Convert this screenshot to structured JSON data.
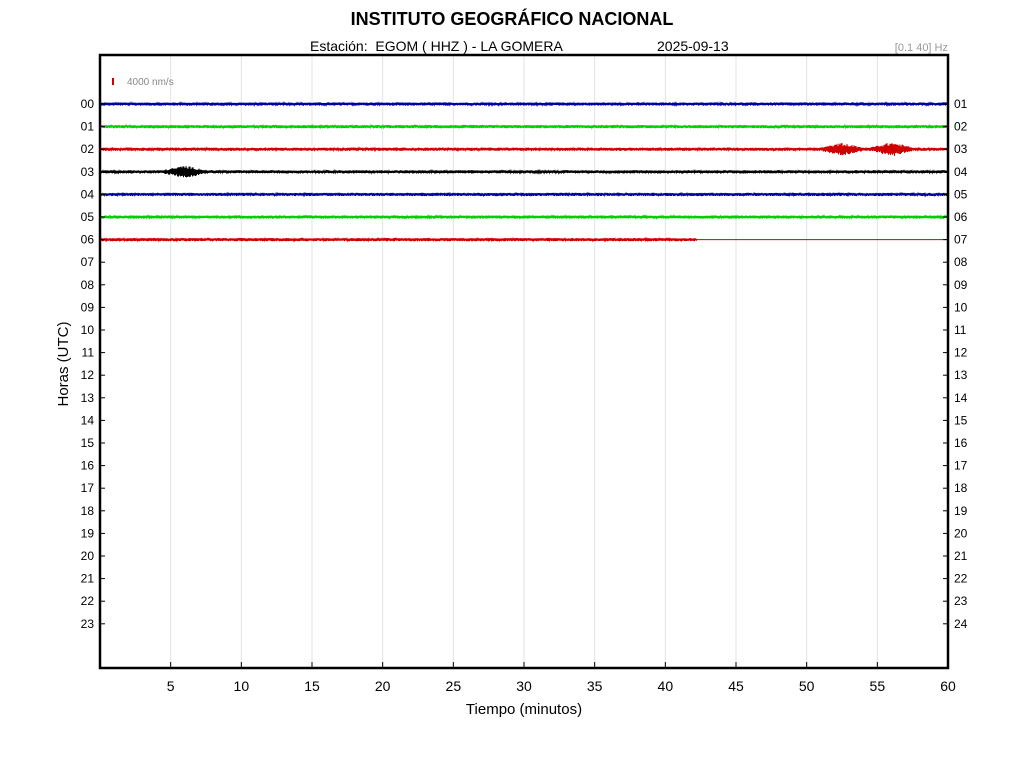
{
  "header": {
    "title": "INSTITUTO GEOGRÁFICO NACIONAL",
    "station": "Estación:  EGOM ( HHZ ) - LA GOMERA",
    "date": "2025-09-13",
    "filter": "[0.1 40] Hz"
  },
  "chart_data": {
    "type": "line",
    "title": "INSTITUTO GEOGRÁFICO NACIONAL",
    "xlabel": "Tiempo (minutos)",
    "ylabel": "Horas (UTC)",
    "xlim": [
      0,
      60
    ],
    "x_ticks": [
      "5",
      "10",
      "15",
      "20",
      "25",
      "30",
      "35",
      "40",
      "45",
      "50",
      "55",
      "60"
    ],
    "y_ticks_left": [
      "00",
      "01",
      "02",
      "03",
      "04",
      "05",
      "06",
      "07",
      "08",
      "09",
      "10",
      "11",
      "12",
      "13",
      "14",
      "15",
      "16",
      "17",
      "18",
      "19",
      "20",
      "21",
      "22",
      "23"
    ],
    "y_ticks_right": [
      "01",
      "02",
      "03",
      "04",
      "05",
      "06",
      "07",
      "08",
      "09",
      "10",
      "11",
      "12",
      "13",
      "14",
      "15",
      "16",
      "17",
      "18",
      "19",
      "20",
      "21",
      "22",
      "23",
      "24"
    ],
    "scale_label": "4000 nm/s",
    "grid": "vertical",
    "traces": [
      {
        "hour": "00",
        "color": "#0000a0",
        "end_minute": 60
      },
      {
        "hour": "01",
        "color": "#00d000",
        "end_minute": 60
      },
      {
        "hour": "02",
        "color": "#d00000",
        "end_minute": 60,
        "events": [
          {
            "minute": 52.5,
            "amplitude": 2.2
          },
          {
            "minute": 56,
            "amplitude": 2.6
          }
        ]
      },
      {
        "hour": "03",
        "color": "#000000",
        "end_minute": 60,
        "events": [
          {
            "minute": 6,
            "amplitude": 2.2
          }
        ]
      },
      {
        "hour": "04",
        "color": "#0000a0",
        "end_minute": 60
      },
      {
        "hour": "05",
        "color": "#00d000",
        "end_minute": 60
      },
      {
        "hour": "06",
        "color": "#d00000",
        "end_minute": 42.2,
        "flat_to": 60
      }
    ]
  }
}
